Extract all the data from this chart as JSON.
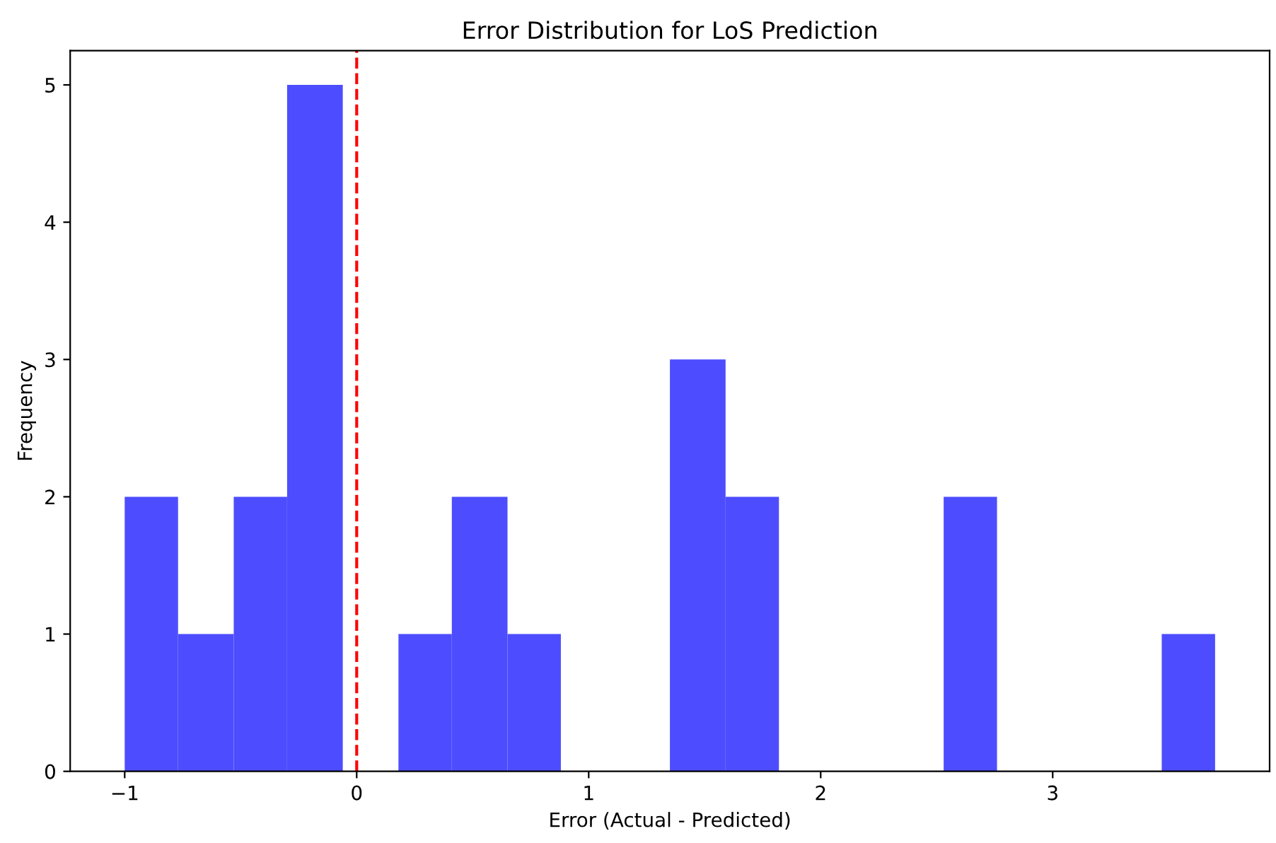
{
  "chart_data": {
    "type": "histogram",
    "title": "Error Distribution for LoS Prediction",
    "xlabel": "Error (Actual - Predicted)",
    "ylabel": "Frequency",
    "bins": [
      -1.0,
      -0.77,
      -0.53,
      -0.3,
      -0.06,
      0.18,
      0.41,
      0.65,
      0.88,
      1.35,
      1.59,
      1.82,
      2.53,
      2.76,
      3.47,
      3.7
    ],
    "values": [
      2,
      1,
      2,
      5,
      0,
      1,
      2,
      1,
      0,
      3,
      2,
      0,
      2,
      0,
      1
    ],
    "color": "#4d4dff",
    "xlim": [
      -1.235,
      3.935
    ],
    "xticks": [
      {
        "value": -1,
        "label": "−1"
      },
      0,
      1,
      2,
      3
    ],
    "ylim": [
      0,
      5.25
    ],
    "yticks": [
      0,
      1,
      2,
      3,
      4,
      5
    ],
    "ref_lines": [
      {
        "axis": "x",
        "value": 0,
        "color": "#ff0000",
        "line_style": "dashed"
      }
    ],
    "grid": false
  }
}
